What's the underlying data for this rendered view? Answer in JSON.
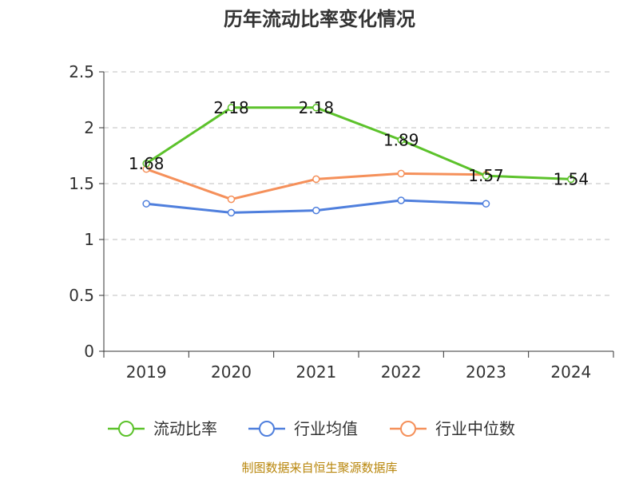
{
  "chart_data": {
    "type": "line",
    "title": "历年流动比率变化情况",
    "categories": [
      "2019",
      "2020",
      "2021",
      "2022",
      "2023",
      "2024"
    ],
    "ylim": [
      0,
      2.5
    ],
    "yticks": [
      "0",
      "0.5",
      "1",
      "1.5",
      "2",
      "2.5"
    ],
    "grid": "horizontal-dashed",
    "legend_position": "bottom",
    "series": [
      {
        "name": "流动比率",
        "color": "#5cc22b",
        "values": [
          1.68,
          2.18,
          2.18,
          1.89,
          1.57,
          1.54
        ],
        "labels": [
          "1.68",
          "2.18",
          "2.18",
          "1.89",
          "1.57",
          "1.54"
        ]
      },
      {
        "name": "行业均值",
        "color": "#4f7fdd",
        "values": [
          1.32,
          1.24,
          1.26,
          1.35,
          1.32,
          null
        ]
      },
      {
        "name": "行业中位数",
        "color": "#f5905a",
        "values": [
          1.63,
          1.36,
          1.54,
          1.59,
          1.58,
          null
        ]
      }
    ]
  },
  "source": "制图数据来自恒生聚源数据库"
}
